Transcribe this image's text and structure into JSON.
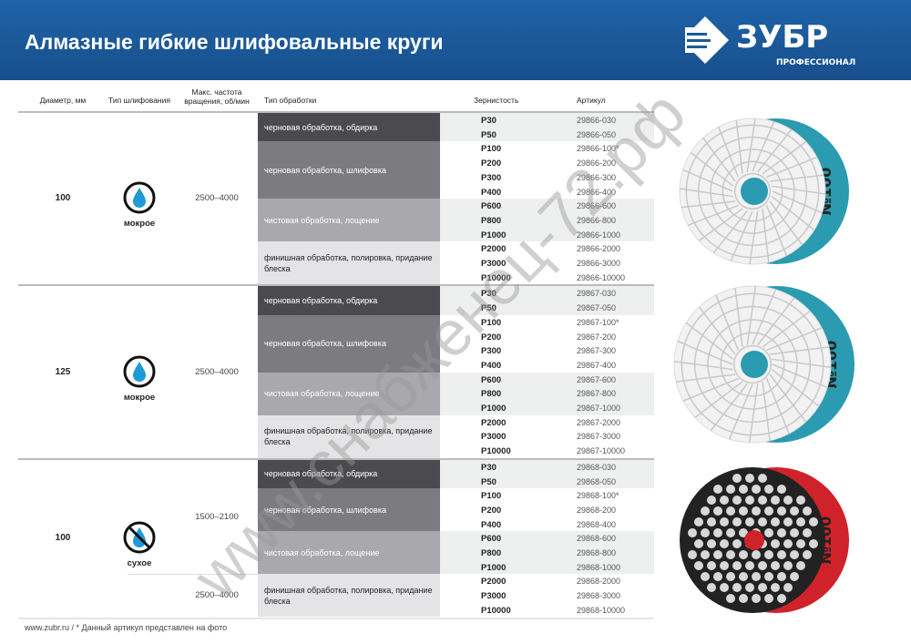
{
  "header": {
    "title": "Алмазные гибкие шлифовальные круги",
    "brand": "ЗУБР",
    "brand_sub": "ПРОФЕССИОНАЛ",
    "color": "#1b5a9a"
  },
  "table": {
    "columns": [
      "Диаметр, мм",
      "Тип шлифования",
      "Макс. частота вращения, об/мин",
      "Тип обработки",
      "Зернистость",
      "Артикул"
    ],
    "sections": [
      {
        "diameter": "100",
        "type": "мокрое",
        "icon": "water-drop-icon",
        "rpm": [
          "2500–4000"
        ],
        "groups": [
          {
            "label": "черновая обработка, обдирка",
            "rows": [
              [
                "P30",
                "29866-030"
              ],
              [
                "P50",
                "29866-050"
              ]
            ]
          },
          {
            "label": "черновая обработка, шлифовка",
            "rows": [
              [
                "P100",
                "29866-100*"
              ],
              [
                "P200",
                "29866-200"
              ],
              [
                "P300",
                "29866-300"
              ],
              [
                "P400",
                "29866-400"
              ]
            ]
          },
          {
            "label": "чистовая обработка, лощение",
            "rows": [
              [
                "P600",
                "29866-600"
              ],
              [
                "P800",
                "29866-800"
              ],
              [
                "P1000",
                "29866-1000"
              ]
            ]
          },
          {
            "label": "финишная обработка, полировка, придание блеска",
            "rows": [
              [
                "P2000",
                "29866-2000"
              ],
              [
                "P3000",
                "29866-3000"
              ],
              [
                "P10000",
                "29866-10000"
              ]
            ]
          }
        ]
      },
      {
        "diameter": "125",
        "type": "мокрое",
        "icon": "water-drop-icon",
        "rpm": [
          "2500–4000"
        ],
        "groups": [
          {
            "label": "черновая обработка, обдирка",
            "rows": [
              [
                "P30",
                "29867-030"
              ],
              [
                "P50",
                "29867-050"
              ]
            ]
          },
          {
            "label": "черновая обработка, шлифовка",
            "rows": [
              [
                "P100",
                "29867-100*"
              ],
              [
                "P200",
                "29867-200"
              ],
              [
                "P300",
                "29867-300"
              ],
              [
                "P400",
                "29867-400"
              ]
            ]
          },
          {
            "label": "чистовая обработка, лощение",
            "rows": [
              [
                "P600",
                "29867-600"
              ],
              [
                "P800",
                "29867-800"
              ],
              [
                "P1000",
                "29867-1000"
              ]
            ]
          },
          {
            "label": "финишная обработка, полировка, придание блеска",
            "rows": [
              [
                "P2000",
                "29867-2000"
              ],
              [
                "P3000",
                "29867-3000"
              ],
              [
                "P10000",
                "29867-10000"
              ]
            ]
          }
        ]
      },
      {
        "diameter": "100",
        "type": "сухое",
        "icon": "no-water-icon",
        "rpm": [
          "1500–2100",
          "2500–4000"
        ],
        "groups": [
          {
            "label": "черновая обработка, обдирка",
            "rows": [
              [
                "P30",
                "29868-030"
              ],
              [
                "P50",
                "29868-050"
              ]
            ]
          },
          {
            "label": "черновая обработка, шлифовка",
            "rows": [
              [
                "P100",
                "29868-100*"
              ],
              [
                "P200",
                "29868-200"
              ],
              [
                "P400",
                "29868-400"
              ]
            ]
          },
          {
            "label": "чистовая обработка, лощение",
            "rows": [
              [
                "P600",
                "29868-600"
              ],
              [
                "P800",
                "29868-800"
              ],
              [
                "P1000",
                "29868-1000"
              ]
            ]
          },
          {
            "label": "финишная обработка, полировка, придание блеска",
            "rows": [
              [
                "P2000",
                "29868-2000"
              ],
              [
                "P3000",
                "29868-3000"
              ],
              [
                "P10000",
                "29868-10000"
              ]
            ]
          }
        ]
      }
    ]
  },
  "discs": [
    {
      "label": "№100",
      "color": "#2a9bb0"
    },
    {
      "label": "№100",
      "color": "#2a9bb0"
    },
    {
      "label": "№100",
      "color": "#d0222a"
    }
  ],
  "group_colors": [
    "#4b4a4f",
    "#7c7b80",
    "#a9a9ad",
    "#e4e4e6"
  ],
  "footer": "www.zubr.ru  /  * Данный артикул представлен на фото",
  "watermark": "www.снабженец-72.рф"
}
